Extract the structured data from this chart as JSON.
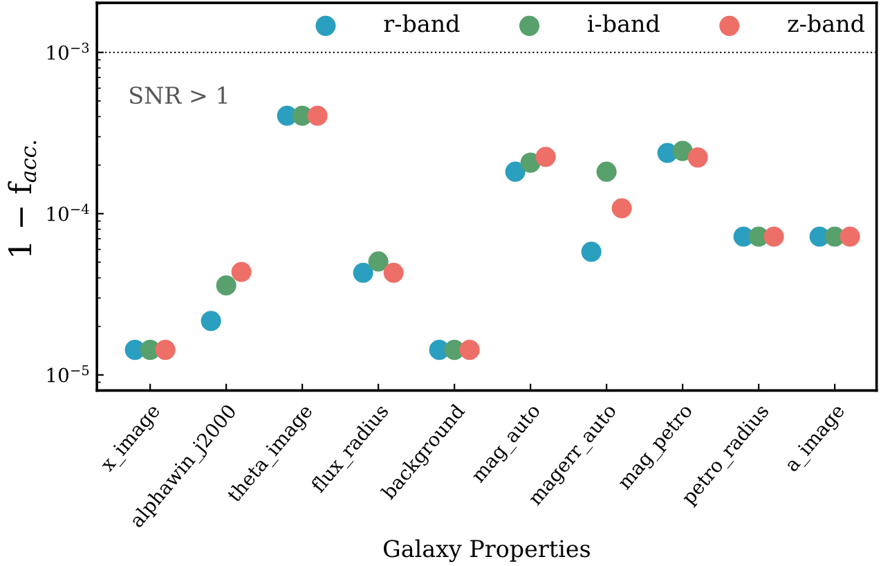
{
  "chart_data": {
    "type": "scatter",
    "xlabel": "Galaxy Properties",
    "ylabel": "1 − f$_{acc.}$",
    "categories": [
      "x_image",
      "alphawin_j2000",
      "theta_image",
      "flux_radius",
      "background",
      "mag_auto",
      "magerr_auto",
      "mag_petro",
      "petro_radius",
      "a_image"
    ],
    "series": [
      {
        "name": "r-band",
        "color": "#2a9fc0",
        "values": [
          1.43e-05,
          2.16e-05,
          0.000405,
          4.3e-05,
          1.43e-05,
          0.000182,
          5.8e-05,
          0.000238,
          7.2e-05,
          7.2e-05
        ]
      },
      {
        "name": "i-band",
        "color": "#58a06c",
        "values": [
          1.43e-05,
          3.59e-05,
          0.000405,
          5.05e-05,
          1.43e-05,
          0.000207,
          0.000182,
          0.000245,
          7.2e-05,
          7.2e-05
        ]
      },
      {
        "name": "z-band",
        "color": "#ee6f68",
        "values": [
          1.43e-05,
          4.35e-05,
          0.000405,
          4.3e-05,
          1.43e-05,
          0.000225,
          0.000108,
          0.000223,
          7.2e-05,
          7.2e-05
        ]
      }
    ],
    "log": "y",
    "ylim": [
      8e-06,
      0.00203
    ],
    "yticks": [
      {
        "value": 1e-05,
        "label": "10$^{−5}$"
      },
      {
        "value": 0.0001,
        "label": "10$^{−4}$"
      },
      {
        "value": 0.001,
        "label": "10$^{−3}$"
      }
    ],
    "ref_lines": [
      {
        "axis": "y",
        "value": 0.001,
        "color": "#000000",
        "line_style": "dotted"
      }
    ],
    "annotations": [
      "SNR > 1"
    ],
    "marker": "circle",
    "legend": "top right",
    "grid": false
  }
}
